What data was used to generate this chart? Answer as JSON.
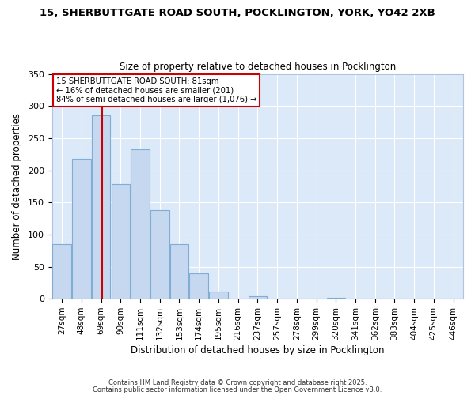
{
  "title_line1": "15, SHERBUTTGATE ROAD SOUTH, POCKLINGTON, YORK, YO42 2XB",
  "title_line2": "Size of property relative to detached houses in Pocklington",
  "xlabel": "Distribution of detached houses by size in Pocklington",
  "ylabel": "Number of detached properties",
  "bar_labels": [
    "27sqm",
    "48sqm",
    "69sqm",
    "90sqm",
    "111sqm",
    "132sqm",
    "153sqm",
    "174sqm",
    "195sqm",
    "216sqm",
    "237sqm",
    "257sqm",
    "278sqm",
    "299sqm",
    "320sqm",
    "341sqm",
    "362sqm",
    "383sqm",
    "404sqm",
    "425sqm",
    "446sqm"
  ],
  "bar_values": [
    85,
    218,
    285,
    178,
    233,
    138,
    85,
    40,
    11,
    0,
    4,
    0,
    0,
    0,
    1,
    0,
    0,
    0,
    0,
    0,
    0
  ],
  "bar_color": "#c5d8f0",
  "bar_edge_color": "#7fadd4",
  "ylim": [
    0,
    350
  ],
  "yticks": [
    0,
    50,
    100,
    150,
    200,
    250,
    300,
    350
  ],
  "vline_color": "#cc0000",
  "annotation_title": "15 SHERBUTTGATE ROAD SOUTH: 81sqm",
  "annotation_line2": "← 16% of detached houses are smaller (201)",
  "annotation_line3": "84% of semi-detached houses are larger (1,076) →",
  "annotation_box_color": "#ffffff",
  "annotation_box_edge": "#cc0000",
  "fig_bg_color": "#ffffff",
  "plot_bg_color": "#dce9f8",
  "grid_color": "#ffffff",
  "footer1": "Contains HM Land Registry data © Crown copyright and database right 2025.",
  "footer2": "Contains public sector information licensed under the Open Government Licence v3.0."
}
